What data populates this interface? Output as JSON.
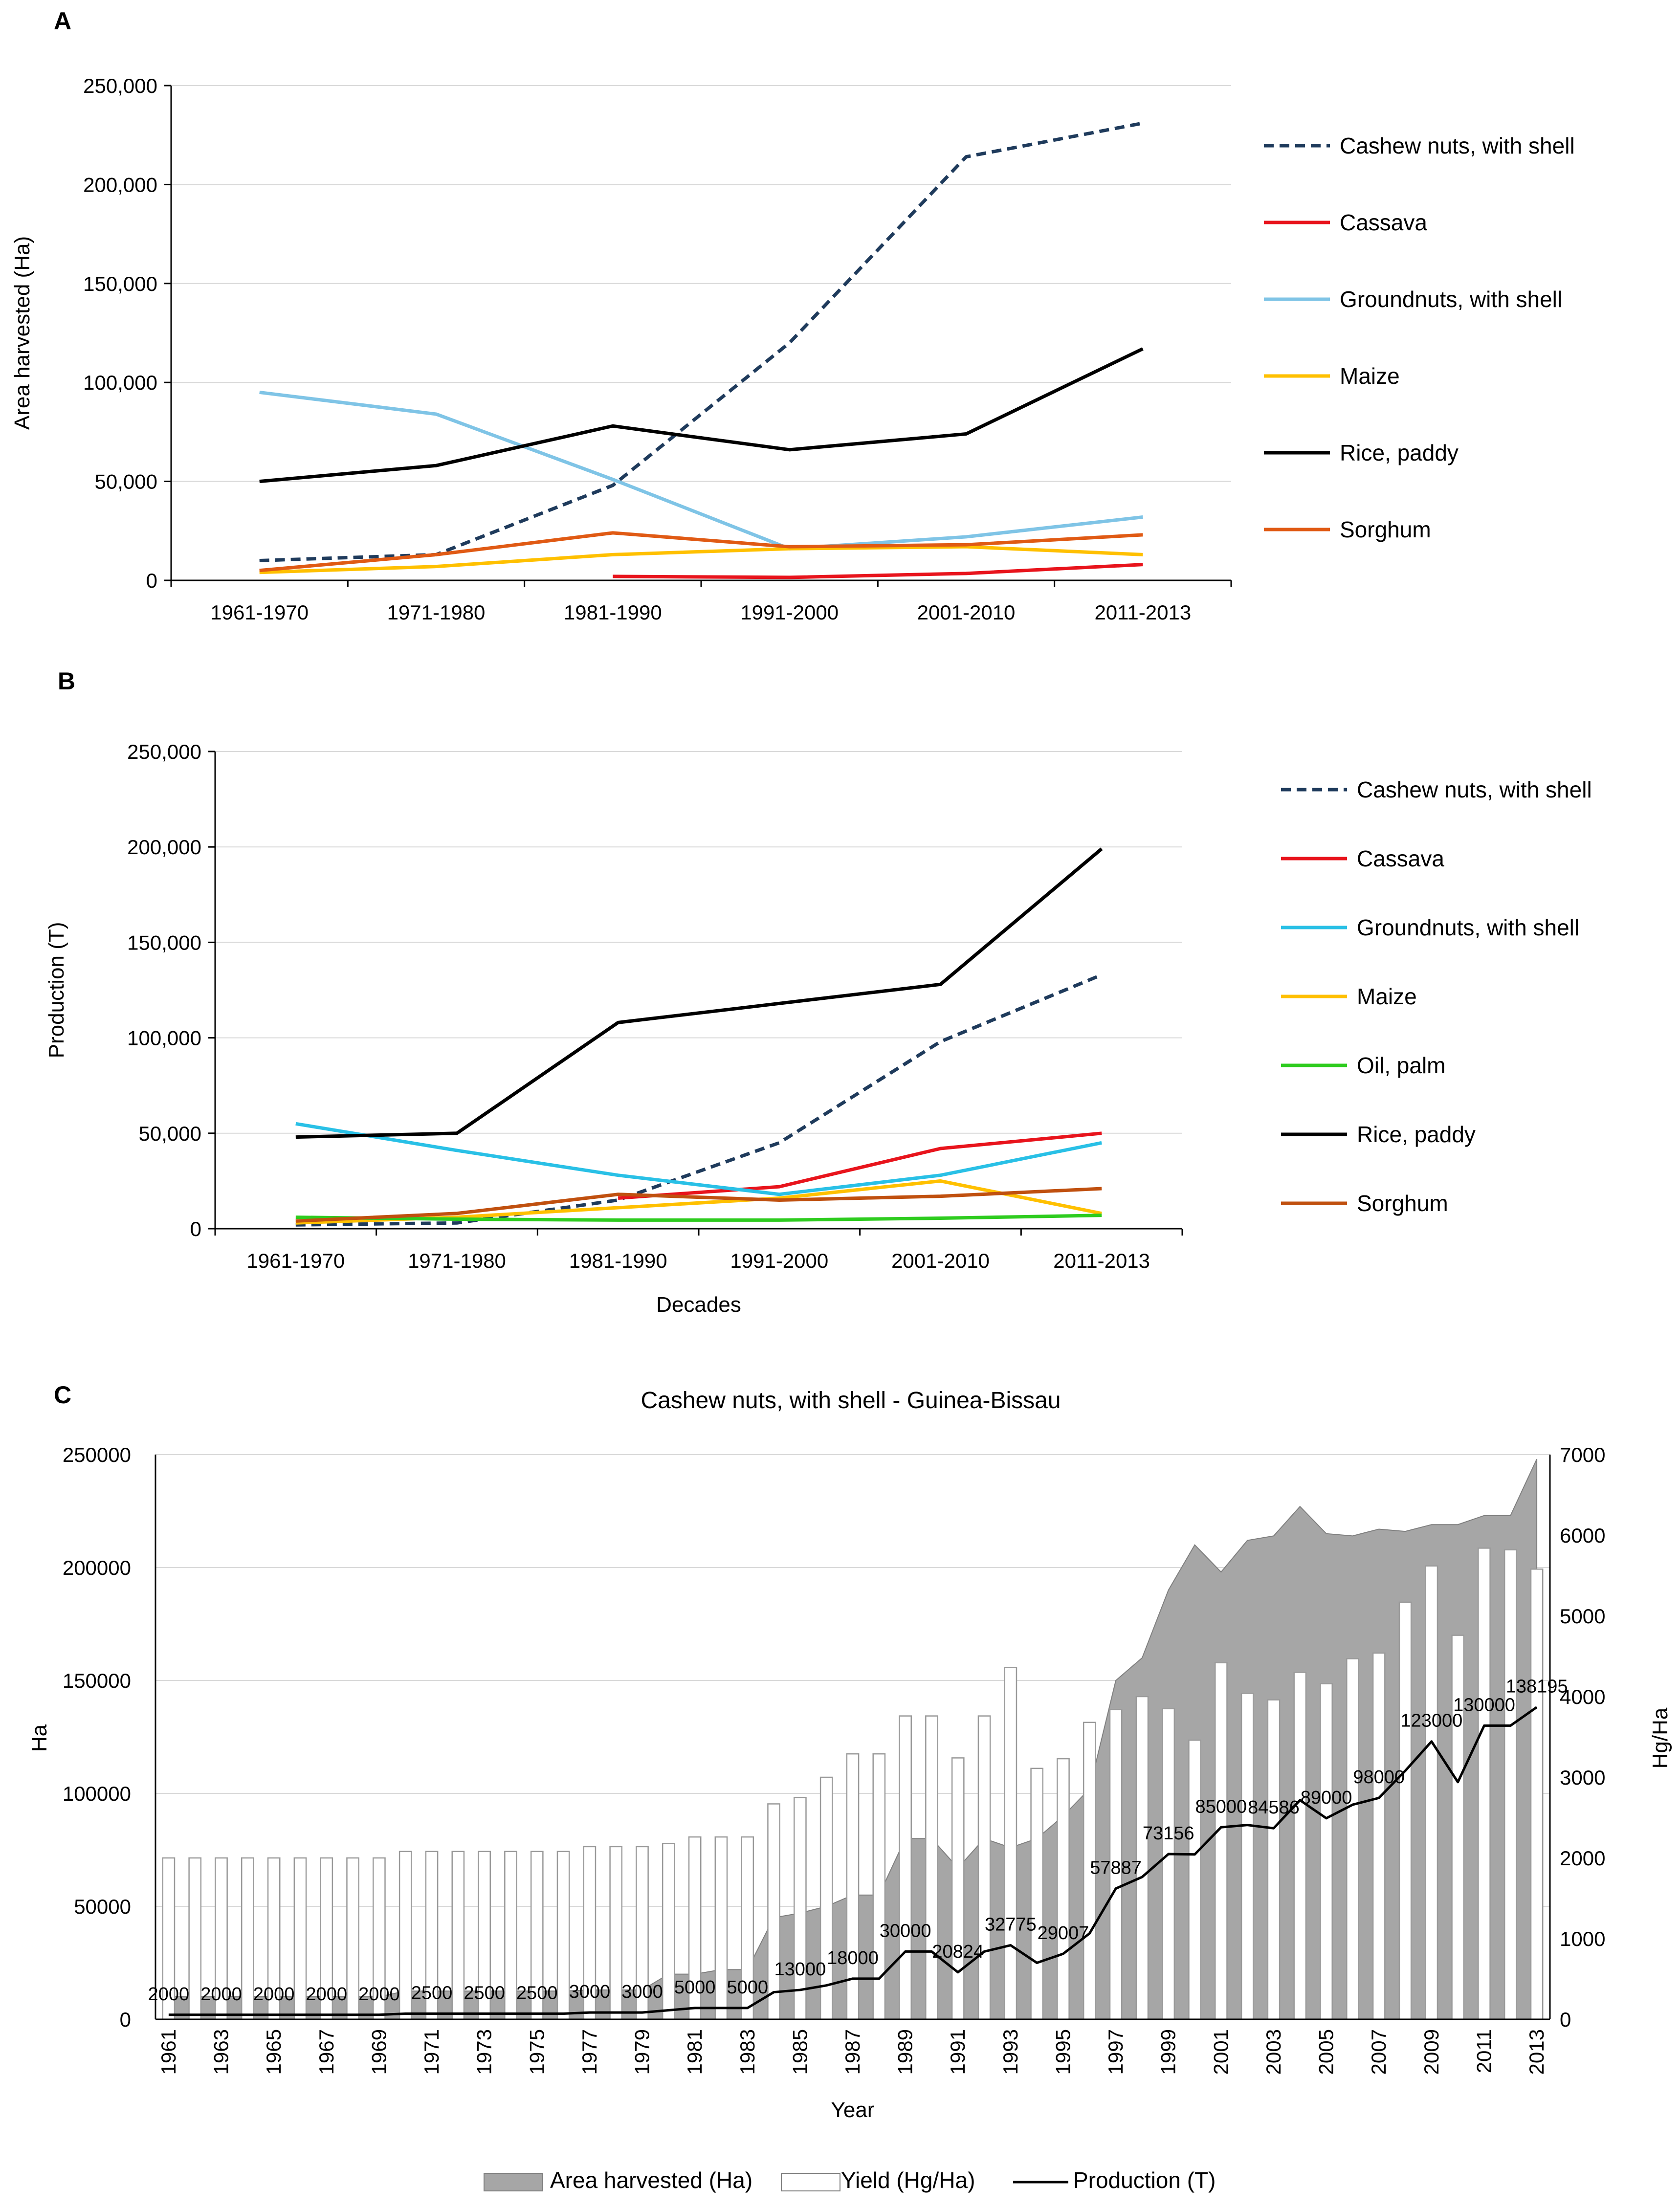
{
  "chart_data": [
    {
      "panel": "A",
      "type": "line",
      "title": "",
      "xlabel": "",
      "ylabel": "Area harvested (Ha)",
      "ylim": [
        0,
        250000
      ],
      "yticks": [
        "0",
        "50,000",
        "100,000",
        "150,000",
        "200,000",
        "250,000"
      ],
      "categories": [
        "1961-1970",
        "1971-1980",
        "1981-1990",
        "1991-2000",
        "2001-2010",
        "2011-2013"
      ],
      "grid": true,
      "legend": "right",
      "series": [
        {
          "name": "Cashew nuts, with shell",
          "color": "#1f3b5c",
          "dashed": true,
          "values": [
            10000,
            13000,
            48000,
            120000,
            214000,
            231000
          ]
        },
        {
          "name": "Cassava",
          "color": "#e8141c",
          "dashed": false,
          "values": [
            null,
            null,
            2000,
            1500,
            3500,
            8000
          ]
        },
        {
          "name": "Groundnuts, with shell",
          "color": "#7fc4e6",
          "dashed": false,
          "values": [
            95000,
            84000,
            51000,
            16000,
            22000,
            32000
          ]
        },
        {
          "name": "Maize",
          "color": "#ffc000",
          "dashed": false,
          "values": [
            4000,
            7000,
            13000,
            16000,
            17000,
            13000
          ]
        },
        {
          "name": "Rice, paddy",
          "color": "#000000",
          "dashed": false,
          "values": [
            50000,
            58000,
            78000,
            66000,
            74000,
            117000
          ]
        },
        {
          "name": "Sorghum",
          "color": "#e05a14",
          "dashed": false,
          "values": [
            5000,
            13000,
            24000,
            17000,
            18000,
            23000
          ]
        }
      ]
    },
    {
      "panel": "B",
      "type": "line",
      "title": "",
      "xlabel": "Decades",
      "ylabel": "Production (T)",
      "ylim": [
        0,
        250000
      ],
      "yticks": [
        "0",
        "50,000",
        "100,000",
        "150,000",
        "200,000",
        "250,000"
      ],
      "categories": [
        "1961-1970",
        "1971-1980",
        "1981-1990",
        "1991-2000",
        "2001-2010",
        "2011-2013"
      ],
      "grid": true,
      "legend": "right",
      "series": [
        {
          "name": "Cashew nuts, with shell",
          "color": "#1f3b5c",
          "dashed": true,
          "values": [
            2000,
            3000,
            15000,
            45000,
            98000,
            133000
          ]
        },
        {
          "name": "Cassava",
          "color": "#e8141c",
          "dashed": false,
          "values": [
            null,
            null,
            16000,
            22000,
            42000,
            50000
          ]
        },
        {
          "name": "Groundnuts, with shell",
          "color": "#29c0e6",
          "dashed": false,
          "values": [
            55000,
            41000,
            28000,
            18000,
            28000,
            45000
          ]
        },
        {
          "name": "Maize",
          "color": "#ffc000",
          "dashed": false,
          "values": [
            3000,
            6000,
            11000,
            16000,
            25000,
            8000
          ]
        },
        {
          "name": "Oil, palm",
          "color": "#2ecc1f",
          "dashed": false,
          "values": [
            6000,
            5000,
            4500,
            4500,
            5500,
            7000
          ]
        },
        {
          "name": "Rice, paddy",
          "color": "#000000",
          "dashed": false,
          "values": [
            48000,
            50000,
            108000,
            118000,
            128000,
            199000
          ]
        },
        {
          "name": "Sorghum",
          "color": "#c0500f",
          "dashed": false,
          "values": [
            4000,
            8000,
            18000,
            15000,
            17000,
            21000
          ]
        }
      ]
    },
    {
      "panel": "C",
      "type": "bar",
      "title": "Cashew nuts, with shell - Guinea-Bissau",
      "xlabel": "Year",
      "ylabel": "Ha",
      "y2label": "Hg/Ha",
      "ylim": [
        0,
        250000
      ],
      "y2lim": [
        0,
        7000
      ],
      "yticks": [
        "0",
        "50000",
        "100000",
        "150000",
        "200000",
        "250000"
      ],
      "y2ticks": [
        "0",
        "1000",
        "2000",
        "3000",
        "4000",
        "5000",
        "6000",
        "7000"
      ],
      "xticks": [
        "1961",
        "1963",
        "1965",
        "1967",
        "1969",
        "1971",
        "1973",
        "1975",
        "1977",
        "1979",
        "1981",
        "1983",
        "1985",
        "1987",
        "1989",
        "1991",
        "1993",
        "1995",
        "1997",
        "1999",
        "2001",
        "2003",
        "2005",
        "2007",
        "2009",
        "2011",
        "2013"
      ],
      "x": [
        1961,
        1962,
        1963,
        1964,
        1965,
        1966,
        1967,
        1968,
        1969,
        1970,
        1971,
        1972,
        1973,
        1974,
        1975,
        1976,
        1977,
        1978,
        1979,
        1980,
        1981,
        1982,
        1983,
        1984,
        1985,
        1986,
        1987,
        1988,
        1989,
        1990,
        1991,
        1992,
        1993,
        1994,
        1995,
        1996,
        1997,
        1998,
        1999,
        2000,
        2001,
        2002,
        2003,
        2004,
        2005,
        2006,
        2007,
        2008,
        2009,
        2010,
        2011,
        2012,
        2013
      ],
      "area_harvested": [
        10000,
        10000,
        10000,
        10000,
        10000,
        10000,
        10000,
        10000,
        10000,
        12500,
        12500,
        12500,
        12500,
        12500,
        12500,
        12500,
        13000,
        13000,
        13000,
        20000,
        20000,
        22000,
        22000,
        45000,
        47000,
        50000,
        55000,
        55000,
        80000,
        80000,
        67000,
        80000,
        76000,
        80000,
        90000,
        102000,
        150000,
        160000,
        190000,
        210000,
        198000,
        212000,
        214000,
        227000,
        215000,
        214000,
        217000,
        216000,
        219000,
        219000,
        223000,
        223000,
        248000
      ],
      "yield": [
        2000,
        2000,
        2000,
        2000,
        2000,
        2000,
        2000,
        2000,
        2000,
        2080,
        2080,
        2080,
        2080,
        2080,
        2080,
        2080,
        2140,
        2140,
        2140,
        2180,
        2260,
        2260,
        2260,
        2670,
        2750,
        3000,
        3290,
        3290,
        3760,
        3760,
        3240,
        3760,
        4360,
        3110,
        3230,
        3680,
        3840,
        4000,
        3850,
        3460,
        4420,
        4040,
        3960,
        4300,
        4160,
        4470,
        4540,
        5170,
        5620,
        4760,
        5840,
        5820,
        5580
      ],
      "production": [
        2000,
        2000,
        2000,
        2000,
        2000,
        2000,
        2000,
        2000,
        2000,
        2500,
        2500,
        2500,
        2500,
        2500,
        2500,
        2500,
        3000,
        3000,
        3000,
        4000,
        5000,
        5000,
        5000,
        12000,
        13000,
        15000,
        18000,
        18000,
        30000,
        30000,
        20824,
        30000,
        32775,
        25000,
        29007,
        38000,
        57887,
        63000,
        73156,
        73000,
        85000,
        86000,
        84586,
        97000,
        89000,
        95000,
        98000,
        110000,
        123000,
        105000,
        130000,
        130000,
        138195
      ],
      "production_labels": [
        {
          "year": 1961,
          "text": "2000"
        },
        {
          "year": 1963,
          "text": "2000"
        },
        {
          "year": 1965,
          "text": "2000"
        },
        {
          "year": 1967,
          "text": "2000"
        },
        {
          "year": 1969,
          "text": "2000"
        },
        {
          "year": 1971,
          "text": "2500"
        },
        {
          "year": 1973,
          "text": "2500"
        },
        {
          "year": 1975,
          "text": "2500"
        },
        {
          "year": 1977,
          "text": "3000"
        },
        {
          "year": 1979,
          "text": "3000"
        },
        {
          "year": 1981,
          "text": "5000"
        },
        {
          "year": 1983,
          "text": "5000"
        },
        {
          "year": 1985,
          "text": "13000"
        },
        {
          "year": 1987,
          "text": "18000"
        },
        {
          "year": 1989,
          "text": "30000"
        },
        {
          "year": 1991,
          "text": "20824"
        },
        {
          "year": 1993,
          "text": "32775"
        },
        {
          "year": 1995,
          "text": "29007"
        },
        {
          "year": 1997,
          "text": "57887"
        },
        {
          "year": 1999,
          "text": "73156"
        },
        {
          "year": 2001,
          "text": "85000"
        },
        {
          "year": 2003,
          "text": "84586"
        },
        {
          "year": 2005,
          "text": "89000"
        },
        {
          "year": 2007,
          "text": "98000"
        },
        {
          "year": 2009,
          "text": "123000"
        },
        {
          "year": 2011,
          "text": "130000"
        },
        {
          "year": 2013,
          "text": "138195"
        }
      ],
      "legend_items": [
        "Area harvested (Ha)",
        "Yield (Hg/Ha)",
        "Production (T)"
      ],
      "legend": "bottom",
      "colors": {
        "area": "#a6a6a6",
        "yield_fill": "#ffffff",
        "yield_stroke": "#9a9a9a",
        "production": "#000000"
      }
    }
  ]
}
